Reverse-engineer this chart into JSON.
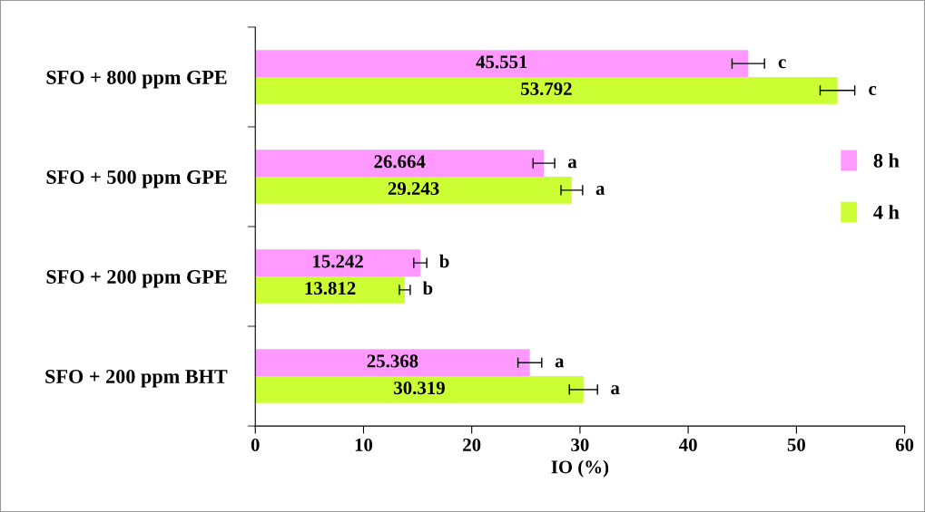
{
  "chart_data": {
    "type": "bar",
    "orientation": "horizontal",
    "xlabel": "IO (%)",
    "categories": [
      "SFO + 800 ppm GPE",
      "SFO + 500 ppm GPE",
      "SFO + 200 ppm GPE",
      "SFO + 200 ppm BHT"
    ],
    "series": [
      {
        "name": "8 h",
        "color": "#ff99ff",
        "values": [
          45.551,
          26.664,
          15.242,
          25.368
        ],
        "errors": [
          1.5,
          1.0,
          0.6,
          1.1
        ]
      },
      {
        "name": "4 h",
        "color": "#ccff33",
        "values": [
          53.792,
          29.243,
          13.812,
          30.319
        ],
        "errors": [
          1.6,
          1.0,
          0.5,
          1.3
        ]
      }
    ],
    "xlim": [
      0,
      60
    ],
    "xticks": [
      0,
      10,
      20,
      30,
      40,
      50,
      60
    ],
    "data_labels": true,
    "legend": "right",
    "grid": false,
    "annotations": [
      "c",
      "c",
      "a",
      "a",
      "b",
      "b",
      "a",
      "a"
    ]
  }
}
